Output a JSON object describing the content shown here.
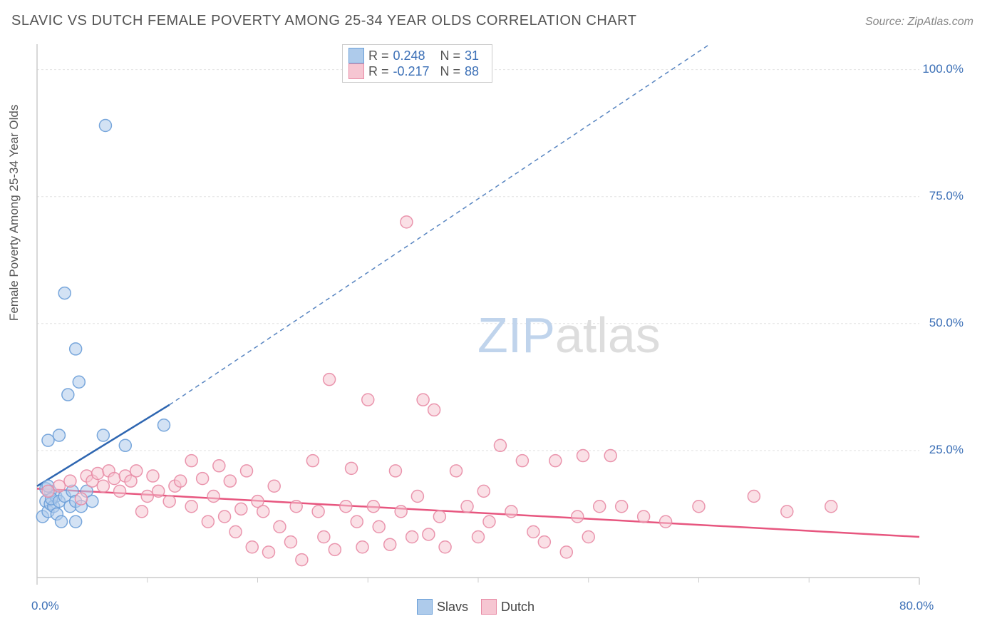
{
  "title": "SLAVIC VS DUTCH FEMALE POVERTY AMONG 25-34 YEAR OLDS CORRELATION CHART",
  "source": "Source: ZipAtlas.com",
  "y_axis_label": "Female Poverty Among 25-34 Year Olds",
  "watermark_a": "ZIP",
  "watermark_b": "atlas",
  "chart": {
    "type": "scatter-correlation",
    "x_domain": [
      0,
      80
    ],
    "y_domain": [
      0,
      105
    ],
    "x_ticks": {
      "major": [
        0,
        80
      ],
      "minor": [
        10,
        20,
        30,
        40,
        50,
        60,
        70
      ],
      "labels": {
        "0": "0.0%",
        "80": "80.0%"
      }
    },
    "y_ticks": {
      "major": [
        25,
        50,
        75,
        100
      ],
      "labels": {
        "25": "25.0%",
        "50": "50.0%",
        "75": "75.0%",
        "100": "100.0%"
      }
    },
    "grid_color": "#e2e2e2",
    "axis_color": "#cccccc",
    "background": "#ffffff",
    "series": [
      {
        "name": "Slavs",
        "color_fill": "#aecbeb",
        "color_stroke": "#6b9fd8",
        "line_color": "#2e66b1",
        "R": "0.248",
        "N": "31",
        "trend_solid": {
          "x1": 0,
          "y1": 18,
          "x2": 12,
          "y2": 34
        },
        "trend_dashed": {
          "x1": 12,
          "y1": 34,
          "x2": 61,
          "y2": 105
        },
        "points": [
          [
            0.5,
            12
          ],
          [
            0.8,
            15
          ],
          [
            1.0,
            13
          ],
          [
            1.2,
            14.5
          ],
          [
            1.5,
            14
          ],
          [
            1.7,
            16
          ],
          [
            1.2,
            17
          ],
          [
            0.8,
            17.5
          ],
          [
            1.0,
            18
          ],
          [
            1.3,
            15.5
          ],
          [
            2.0,
            15
          ],
          [
            2.5,
            16
          ],
          [
            3.0,
            14
          ],
          [
            3.2,
            17
          ],
          [
            3.5,
            15
          ],
          [
            1.8,
            12.5
          ],
          [
            2.2,
            11
          ],
          [
            3.5,
            11
          ],
          [
            4.0,
            14
          ],
          [
            4.5,
            17
          ],
          [
            5.0,
            15
          ],
          [
            1.0,
            27
          ],
          [
            2.0,
            28
          ],
          [
            6.0,
            28
          ],
          [
            8.0,
            26
          ],
          [
            11.5,
            30
          ],
          [
            2.8,
            36
          ],
          [
            3.8,
            38.5
          ],
          [
            3.5,
            45
          ],
          [
            2.5,
            56
          ],
          [
            6.2,
            89
          ]
        ]
      },
      {
        "name": "Dutch",
        "color_fill": "#f6c6d2",
        "color_stroke": "#e88ba5",
        "line_color": "#e7567f",
        "R": "-0.217",
        "N": "88",
        "trend_solid": {
          "x1": 0,
          "y1": 17.5,
          "x2": 80,
          "y2": 8
        },
        "points": [
          [
            1,
            17
          ],
          [
            2,
            18
          ],
          [
            3,
            19
          ],
          [
            4,
            15.5
          ],
          [
            4.5,
            20
          ],
          [
            5,
            19
          ],
          [
            5.5,
            20.5
          ],
          [
            6,
            18
          ],
          [
            6.5,
            21
          ],
          [
            7,
            19.5
          ],
          [
            7.5,
            17
          ],
          [
            8,
            20
          ],
          [
            8.5,
            19
          ],
          [
            9,
            21
          ],
          [
            9.5,
            13
          ],
          [
            10,
            16
          ],
          [
            10.5,
            20
          ],
          [
            11,
            17
          ],
          [
            12,
            15
          ],
          [
            12.5,
            18
          ],
          [
            13,
            19
          ],
          [
            14,
            14
          ],
          [
            14,
            23
          ],
          [
            15,
            19.5
          ],
          [
            15.5,
            11
          ],
          [
            16,
            16
          ],
          [
            16.5,
            22
          ],
          [
            17,
            12
          ],
          [
            17.5,
            19
          ],
          [
            18,
            9
          ],
          [
            18.5,
            13.5
          ],
          [
            19,
            21
          ],
          [
            19.5,
            6
          ],
          [
            20,
            15
          ],
          [
            20.5,
            13
          ],
          [
            21,
            5
          ],
          [
            21.5,
            18
          ],
          [
            22,
            10
          ],
          [
            23,
            7
          ],
          [
            23.5,
            14
          ],
          [
            24,
            3.5
          ],
          [
            25,
            23
          ],
          [
            25.5,
            13
          ],
          [
            26,
            8
          ],
          [
            26.5,
            39
          ],
          [
            27,
            5.5
          ],
          [
            28,
            14
          ],
          [
            28.5,
            21.5
          ],
          [
            29,
            11
          ],
          [
            29.5,
            6
          ],
          [
            30,
            35
          ],
          [
            30.5,
            14
          ],
          [
            31,
            10
          ],
          [
            32,
            6.5
          ],
          [
            32.5,
            21
          ],
          [
            33,
            13
          ],
          [
            33.5,
            70
          ],
          [
            34,
            8
          ],
          [
            34.5,
            16
          ],
          [
            35,
            35
          ],
          [
            35.5,
            8.5
          ],
          [
            36,
            33
          ],
          [
            36.5,
            12
          ],
          [
            37,
            6
          ],
          [
            38,
            21
          ],
          [
            39,
            14
          ],
          [
            40,
            8
          ],
          [
            40.5,
            17
          ],
          [
            41,
            11
          ],
          [
            42,
            26
          ],
          [
            43,
            13
          ],
          [
            44,
            23
          ],
          [
            45,
            9
          ],
          [
            46,
            7
          ],
          [
            47,
            23
          ],
          [
            48,
            5
          ],
          [
            49,
            12
          ],
          [
            49.5,
            24
          ],
          [
            50,
            8
          ],
          [
            51,
            14
          ],
          [
            52,
            24
          ],
          [
            53,
            14
          ],
          [
            55,
            12
          ],
          [
            57,
            11
          ],
          [
            60,
            14
          ],
          [
            65,
            16
          ],
          [
            68,
            13
          ],
          [
            72,
            14
          ]
        ]
      }
    ]
  },
  "legend_bottom": [
    {
      "label": "Slavs"
    },
    {
      "label": "Dutch"
    }
  ]
}
